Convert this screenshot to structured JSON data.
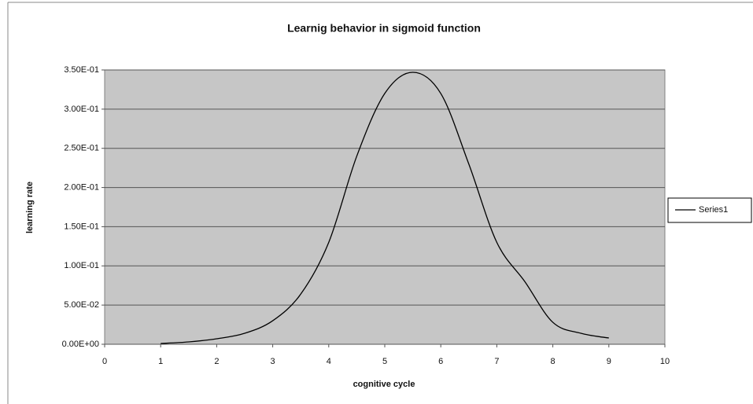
{
  "chart_data": {
    "type": "line",
    "title": "Learnig behavior in sigmoid function",
    "x_label": "cognitive cycle",
    "y_label": "learning rate",
    "series": [
      {
        "name": "Series1",
        "color": "#000000",
        "x": [
          1,
          1.5,
          2,
          2.5,
          3,
          3.5,
          4,
          4.5,
          5,
          5.5,
          6,
          6.5,
          7,
          7.5,
          8,
          8.5,
          9
        ],
        "values": [
          0.001,
          0.003,
          0.007,
          0.014,
          0.03,
          0.064,
          0.13,
          0.24,
          0.32,
          0.347,
          0.32,
          0.23,
          0.13,
          0.08,
          0.028,
          0.014,
          0.008
        ]
      }
    ],
    "xlim": [
      0,
      10
    ],
    "xticks": [
      0,
      1,
      2,
      3,
      4,
      5,
      6,
      7,
      8,
      9,
      10
    ],
    "ylim": [
      0,
      0.35
    ],
    "yticks": [
      {
        "value": 0,
        "label": "0.00E+00"
      },
      {
        "value": 0.05,
        "label": "5.00E-02"
      },
      {
        "value": 0.1,
        "label": "1.00E-01"
      },
      {
        "value": 0.15,
        "label": "1.50E-01"
      },
      {
        "value": 0.2,
        "label": "2.00E-01"
      },
      {
        "value": 0.25,
        "label": "2.50E-01"
      },
      {
        "value": 0.3,
        "label": "3.00E-01"
      },
      {
        "value": 0.35,
        "label": "3.50E-01"
      }
    ],
    "grid": true,
    "legend": "right"
  }
}
